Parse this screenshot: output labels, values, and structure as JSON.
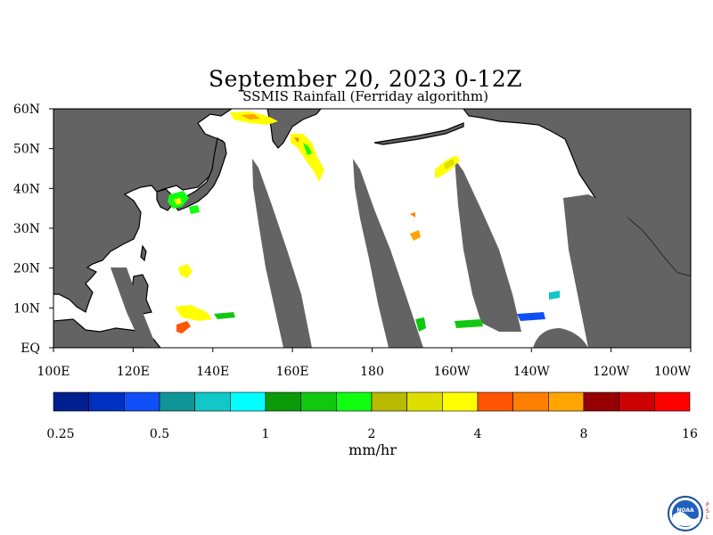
{
  "title": "September 20, 2023 0-12Z",
  "subtitle": "SSMIS Rainfall (Ferriday algorithm)",
  "map": {
    "lat_range": [
      0,
      60
    ],
    "lon_range": [
      100,
      260
    ],
    "lat_labels": [
      "60N",
      "50N",
      "40N",
      "30N",
      "20N",
      "10N",
      "EQ"
    ],
    "lon_labels": [
      "100E",
      "120E",
      "140E",
      "160E",
      "180",
      "160W",
      "140W",
      "120W",
      "100W"
    ],
    "land_color": "#636363",
    "nodata_color": "#636363",
    "background_color": "#ffffff"
  },
  "colorbar": {
    "colors": [
      "#001f8e",
      "#0030bf",
      "#0f4ff5",
      "#0f9498",
      "#11c7c7",
      "#00ffff",
      "#0a9a0a",
      "#0fc80f",
      "#11ff11",
      "#b9b900",
      "#dddd00",
      "#ffff00",
      "#ff5500",
      "#ff8000",
      "#ffa400",
      "#960000",
      "#cc0000",
      "#ff0000"
    ],
    "tick_labels": [
      "0.25",
      "0.5",
      "1",
      "2",
      "4",
      "8",
      "16"
    ],
    "units": "mm/hr"
  },
  "logo": {
    "name": "NOAA",
    "side_text": "PSL"
  }
}
